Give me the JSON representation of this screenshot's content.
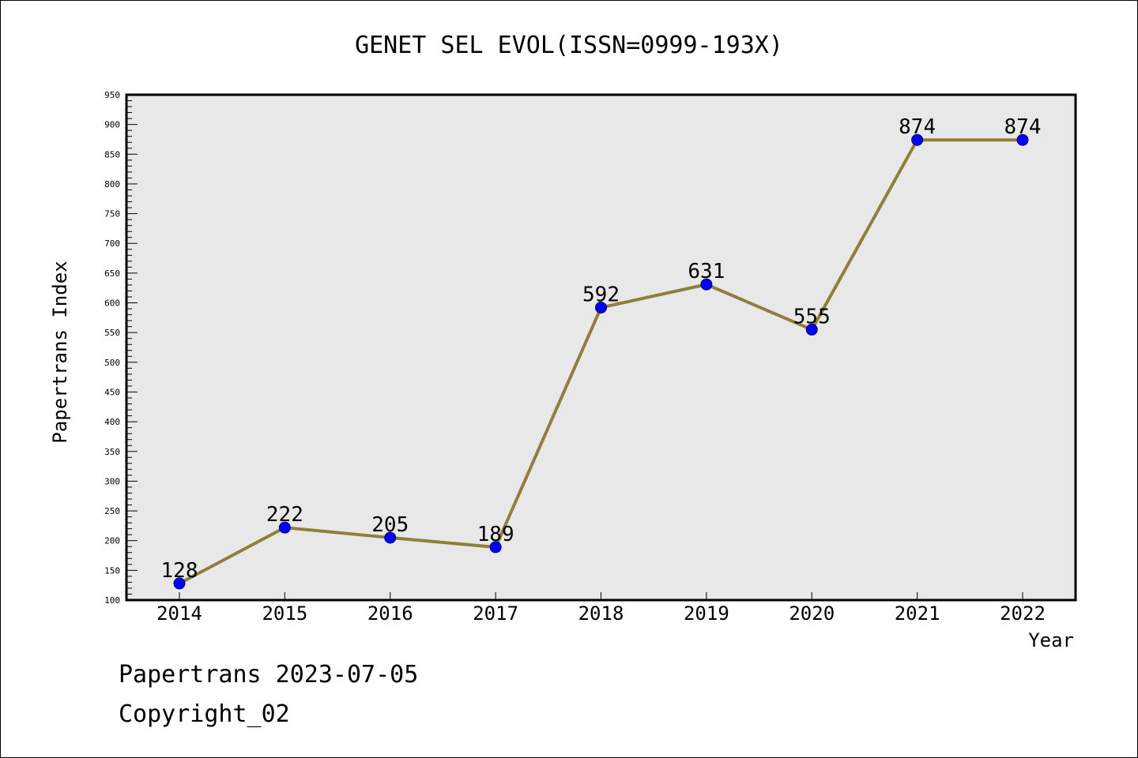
{
  "chart_data": {
    "type": "line",
    "title": "GENET SEL EVOL(ISSN=0999-193X)",
    "xlabel": "Year",
    "ylabel": "Papertrans Index",
    "categories": [
      "2014",
      "2015",
      "2016",
      "2017",
      "2018",
      "2019",
      "2020",
      "2021",
      "2022"
    ],
    "values": [
      128,
      222,
      205,
      189,
      592,
      631,
      555,
      874,
      874
    ],
    "data_labels": [
      "128",
      "222",
      "205",
      "189",
      "592",
      "631",
      "555",
      "874",
      "874"
    ],
    "ylim": [
      100,
      950
    ],
    "yticks": [
      100,
      150,
      200,
      250,
      300,
      350,
      400,
      450,
      500,
      550,
      600,
      650,
      700,
      750,
      800,
      850,
      900,
      950
    ],
    "ytick_labels": [
      "100",
      "150",
      "200",
      "250",
      "300",
      "350",
      "400",
      "450",
      "500",
      "550",
      "600",
      "650",
      "700",
      "750",
      "800",
      "850",
      "900",
      "950"
    ],
    "grid": false,
    "legend": "none",
    "colors": {
      "line": "#8f7f3a",
      "marker": "#0000ff",
      "plot_background": "#e8e8e8"
    }
  },
  "footer": {
    "line1": "Papertrans 2023-07-05",
    "line2": "Copyright_02"
  }
}
